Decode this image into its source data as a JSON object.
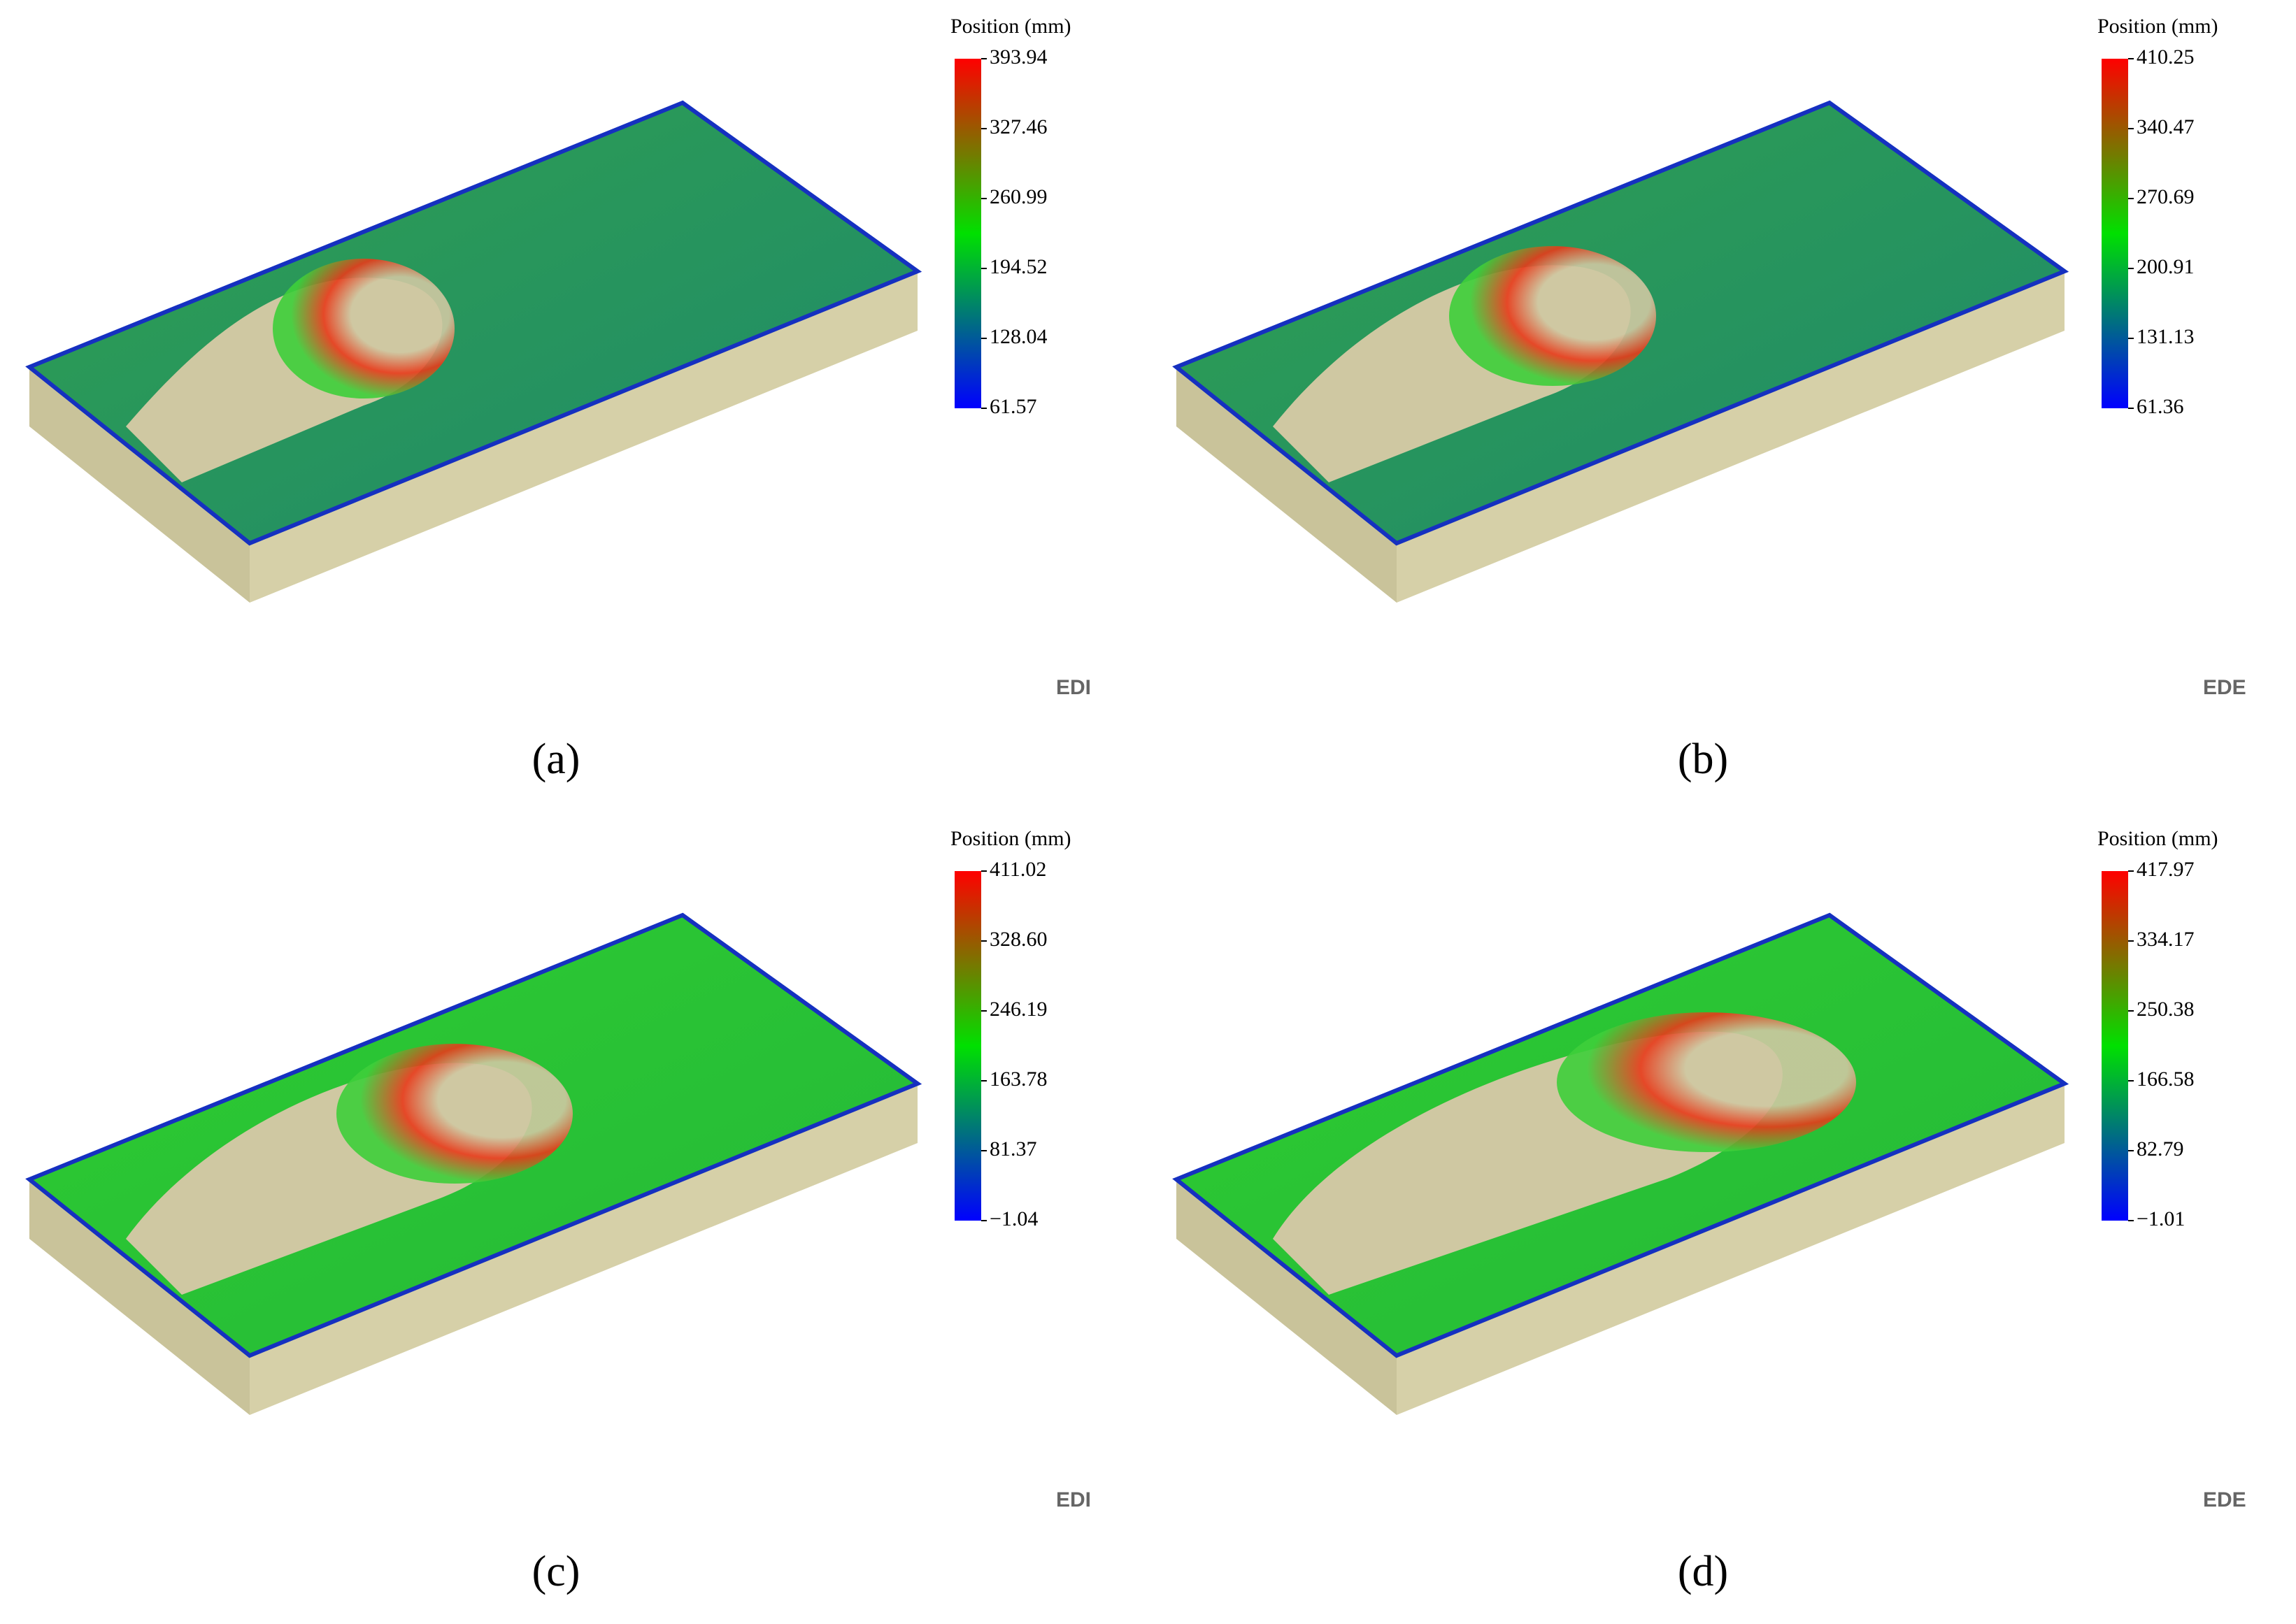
{
  "panels": [
    {
      "caption": "(a)",
      "legend_title": "Position (mm)",
      "logo": "EDI",
      "ylim": [
        61.57,
        393.94
      ],
      "yticks": [
        393.94,
        327.46,
        260.99,
        194.52,
        128.04,
        61.57
      ]
    },
    {
      "caption": "(b)",
      "legend_title": "Position (mm)",
      "logo": "EDE",
      "ylim": [
        61.36,
        410.25
      ],
      "yticks": [
        410.25,
        340.47,
        270.69,
        200.91,
        131.13,
        61.36
      ]
    },
    {
      "caption": "(c)",
      "legend_title": "Position (mm)",
      "logo": "EDI",
      "ylim": [
        -1.04,
        411.02
      ],
      "yticks": [
        411.02,
        {
          "value": 328.6,
          "label": "328.60"
        },
        246.19,
        163.78,
        81.37,
        {
          "value": -1.04,
          "label": "−1.04"
        }
      ]
    },
    {
      "caption": "(d)",
      "legend_title": "Position (mm)",
      "logo": "EDE",
      "ylim": [
        -1.01,
        417.97
      ],
      "yticks": [
        417.97,
        334.17,
        250.38,
        166.58,
        82.79,
        {
          "value": -1.01,
          "label": "−1.01"
        }
      ]
    }
  ]
}
